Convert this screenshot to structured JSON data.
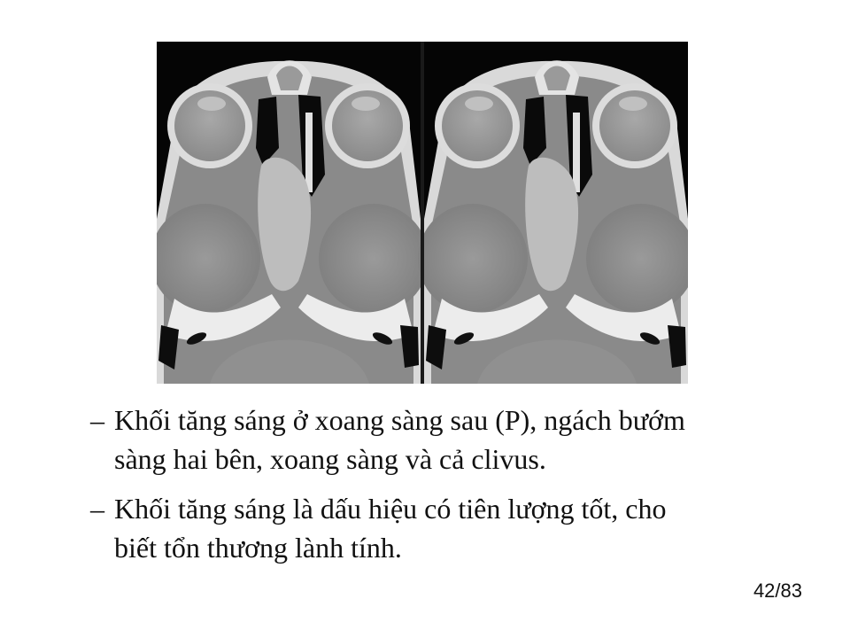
{
  "slide": {
    "bullets": [
      {
        "marker": "–",
        "lines": [
          "Khối tăng sáng ở xoang sàng sau (P), ngách bướm",
          "sàng hai bên, xoang sàng và cả clivus."
        ]
      },
      {
        "marker": "–",
        "lines": [
          "Khối tăng sáng là dấu hiệu có tiên lượng tốt, cho",
          "biết tổn thương lành tính."
        ]
      }
    ],
    "page_number": "42/83"
  }
}
